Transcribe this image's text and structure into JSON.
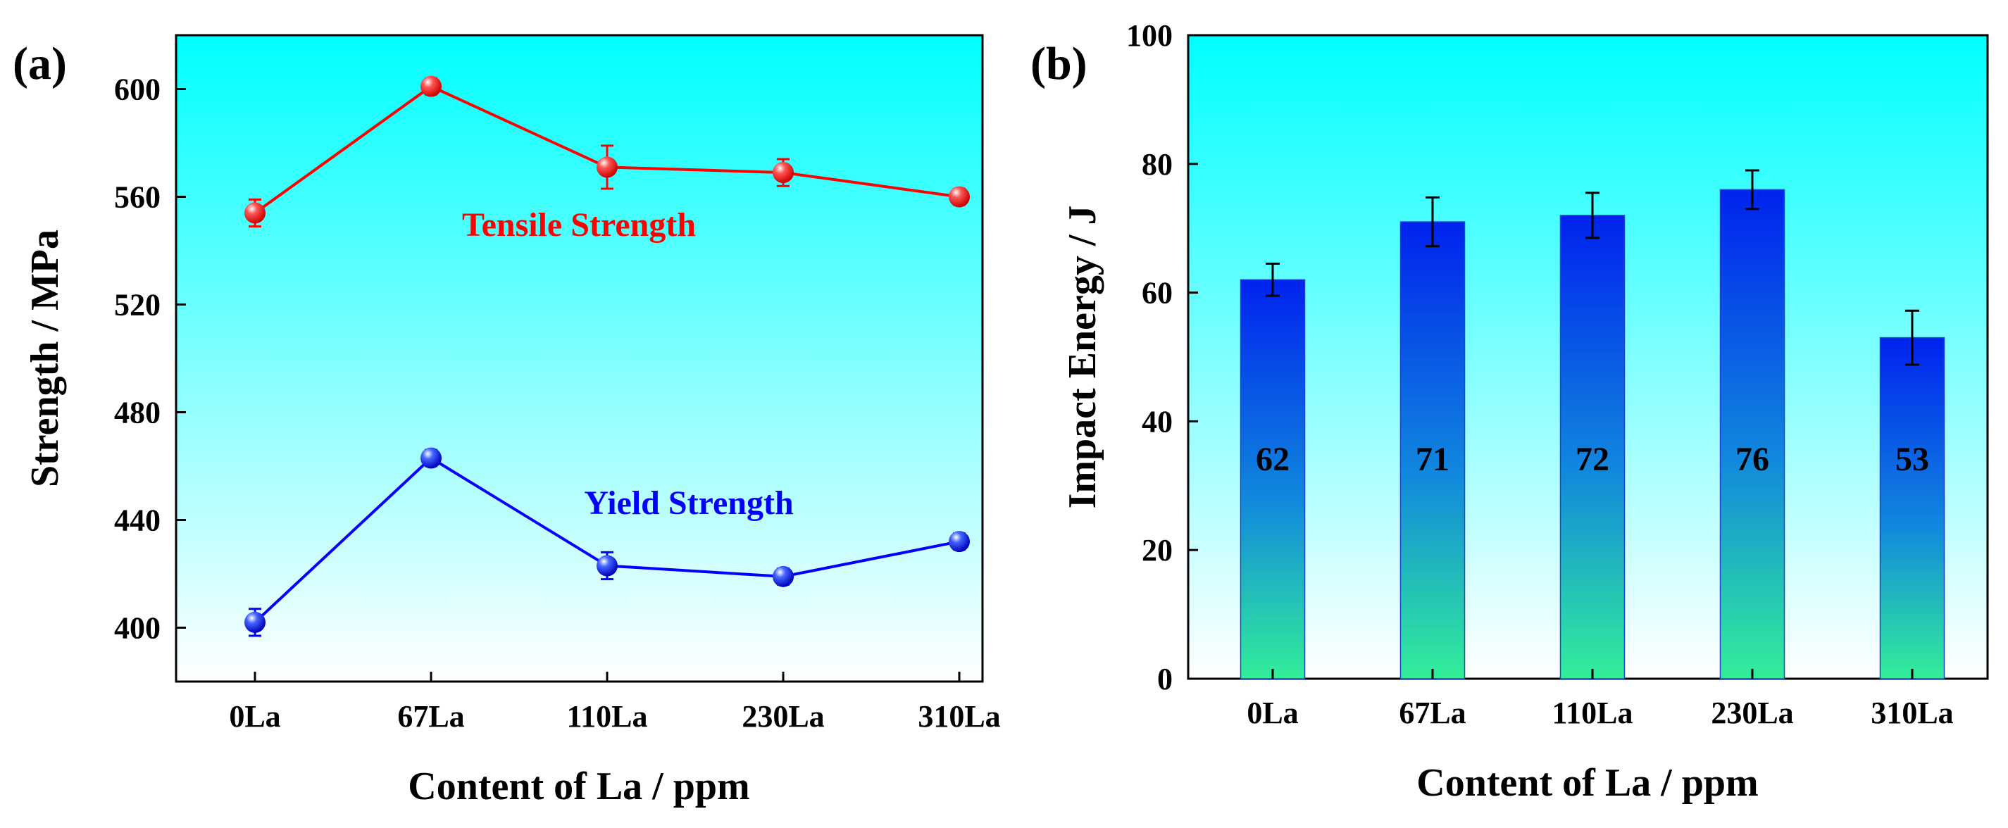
{
  "chart_data": [
    {
      "panel_label": "(a)",
      "type": "line",
      "categories": [
        "0La",
        "67La",
        "110La",
        "230La",
        "310La"
      ],
      "xlabel": "Content of La / ppm",
      "ylabel": "Strength / MPa",
      "ylim": [
        380,
        620
      ],
      "yticks": [
        400,
        440,
        480,
        520,
        560,
        600
      ],
      "background_gradient": [
        "#00ffff",
        "#ffffff"
      ],
      "series": [
        {
          "name": "Tensile Strength",
          "color": "#ff0000",
          "values": [
            554,
            601,
            571,
            569,
            560
          ],
          "errors": [
            5,
            3,
            8,
            5,
            3
          ]
        },
        {
          "name": "Yield Strength",
          "color": "#0000ff",
          "values": [
            402,
            463,
            423,
            419,
            432
          ],
          "errors": [
            5,
            3,
            5,
            3,
            3
          ]
        }
      ]
    },
    {
      "panel_label": "(b)",
      "type": "bar",
      "categories": [
        "0La",
        "67La",
        "110La",
        "230La",
        "310La"
      ],
      "xlabel": "Content of La / ppm",
      "ylabel": "Impact Energy / J",
      "ylim": [
        0,
        100
      ],
      "yticks": [
        0,
        20,
        40,
        60,
        80,
        100
      ],
      "values": [
        62,
        71,
        72,
        76,
        53
      ],
      "errors": [
        2.5,
        3.8,
        3.5,
        3.0,
        4.2
      ],
      "data_labels": [
        "62",
        "71",
        "72",
        "76",
        "53"
      ],
      "background_gradient": [
        "#00ffff",
        "#ffffff"
      ],
      "bar_gradient": [
        "#0022ee",
        "#33ee99"
      ]
    }
  ]
}
